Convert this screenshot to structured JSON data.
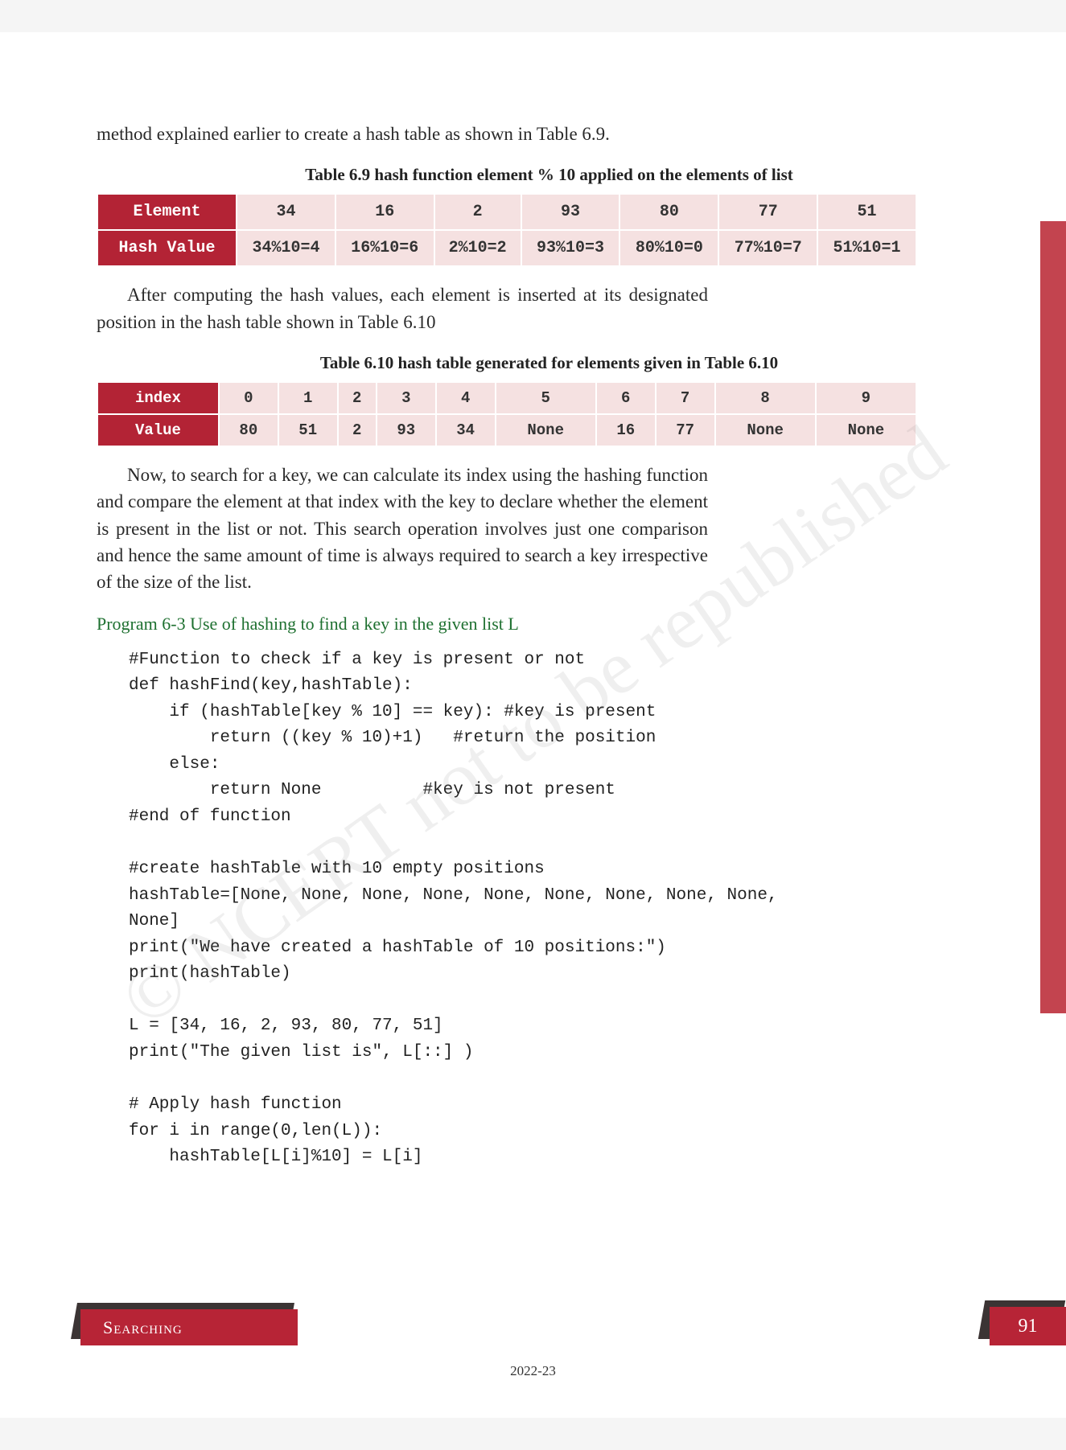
{
  "intro": "method explained earlier to create a hash table as shown in Table 6.9.",
  "table69": {
    "caption": "Table 6.9 hash function element % 10 applied on the elements of list",
    "row_headers": [
      "Element",
      "Hash Value"
    ],
    "elements": [
      "34",
      "16",
      "2",
      "93",
      "80",
      "77",
      "51"
    ],
    "hash_values": [
      "34%10=4",
      "16%10=6",
      "2%10=2",
      "93%10=3",
      "80%10=0",
      "77%10=7",
      "51%10=1"
    ]
  },
  "para2": "After computing the hash values, each element is inserted at its designated position in the hash table shown in Table 6.10",
  "table610": {
    "caption": "Table 6.10   hash table generated for elements given in Table 6.10",
    "row_headers": [
      "index",
      "Value"
    ],
    "indices": [
      "0",
      "1",
      "2",
      "3",
      "4",
      "5",
      "6",
      "7",
      "8",
      "9"
    ],
    "values": [
      "80",
      "51",
      "2",
      "93",
      "34",
      "None",
      "16",
      "77",
      "None",
      "None"
    ]
  },
  "para3": "Now, to search for a key, we can calculate its index using the hashing function and compare the element at that index with the key to declare whether the element is present in the list or not. This search operation involves just one comparison and hence the same amount of time is always required to search a key irrespective of the size of the list.",
  "program_title": "Program 6-3 Use of hashing to find a key in the given list L",
  "code": "#Function to check if a key is present or not\ndef hashFind(key,hashTable):\n    if (hashTable[key % 10] == key): #key is present\n        return ((key % 10)+1)   #return the position\n    else:\n        return None          #key is not present\n#end of function\n\n#create hashTable with 10 empty positions\nhashTable=[None, None, None, None, None, None, None, None, None,\nNone]\nprint(\"We have created a hashTable of 10 positions:\")\nprint(hashTable)\n\nL = [34, 16, 2, 93, 80, 77, 51]\nprint(\"The given list is\", L[::] )\n\n# Apply hash function\nfor i in range(0,len(L)):\n    hashTable[L[i]%10] = L[i]",
  "watermark": "© NCERT not to be republished",
  "footer": {
    "chapter": "Searching",
    "page": "91",
    "year": "2022-23"
  },
  "style": {
    "header_bg": "#b32335",
    "header_fg": "#ffffff",
    "cell_bg": "#f5e1e1",
    "cell_fg": "#333333",
    "program_color": "#1e7030",
    "sidebar_color": "#c3444f",
    "label_bg": "#b72436",
    "shadow_bg": "#3b3434",
    "body_font": "Georgia, serif",
    "code_font": "Courier New, monospace",
    "body_fontsize": 23,
    "code_fontsize": 21,
    "caption_fontsize": 21
  }
}
